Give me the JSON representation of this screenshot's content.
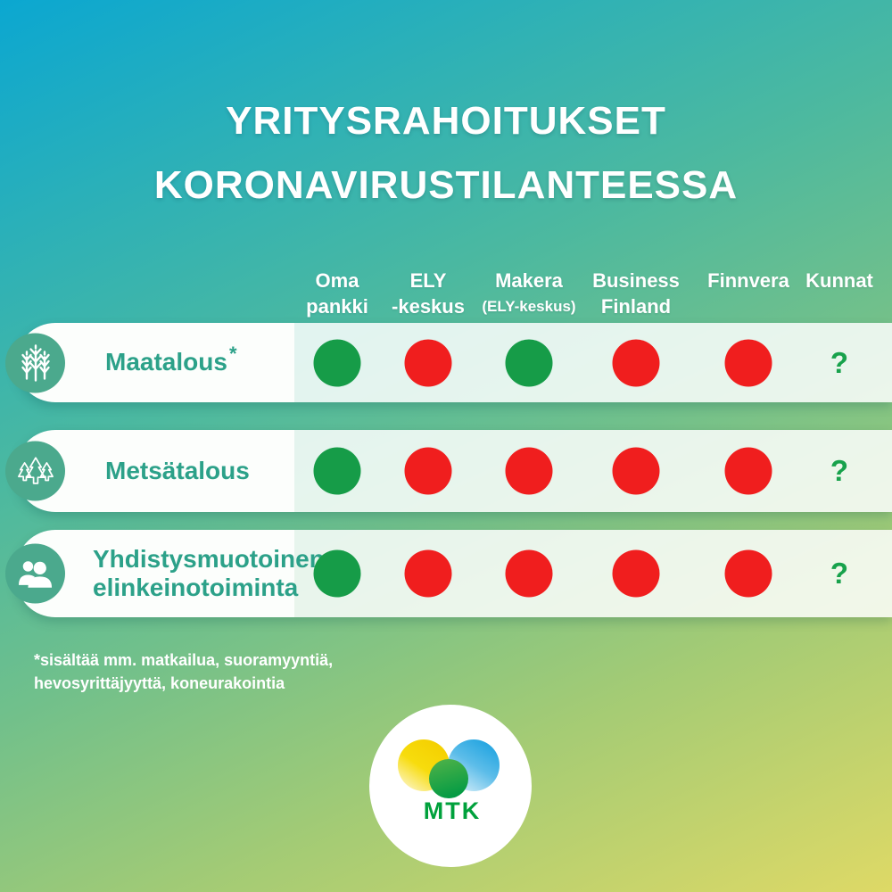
{
  "title": {
    "line1": "YRITYSRAHOITUKSET",
    "line2": "KORONAVIRUSTILANTEESSA"
  },
  "columns": [
    {
      "id": "oma-pankki",
      "line1": "Oma",
      "line2": "pankki"
    },
    {
      "id": "ely-keskus",
      "line1": "ELY",
      "line2": "-keskus"
    },
    {
      "id": "makera",
      "line1": "Makera",
      "line2": "(ELY-keskus)"
    },
    {
      "id": "business-finland",
      "line1": "Business",
      "line2": "Finland"
    },
    {
      "id": "finnvera",
      "line1": "Finnvera",
      "line2": ""
    },
    {
      "id": "kunnat",
      "line1": "Kunnat",
      "line2": ""
    }
  ],
  "rows": [
    {
      "id": "maatalous",
      "icon": "wheat-icon",
      "label": "Maatalous",
      "label_suffix": "*",
      "label2": "",
      "cells": [
        "green",
        "red",
        "green",
        "red",
        "red",
        "?"
      ]
    },
    {
      "id": "metsatalous",
      "icon": "trees-icon",
      "label": "Metsätalous",
      "label_suffix": "",
      "label2": "",
      "cells": [
        "green",
        "red",
        "red",
        "red",
        "red",
        "?"
      ]
    },
    {
      "id": "yhdistysmuotoinen-elinkeinotoiminta",
      "icon": "people-icon",
      "label": "Yhdistysmuotoinen",
      "label_suffix": "",
      "label2": "elinkeinotoiminta",
      "cells": [
        "green",
        "red",
        "red",
        "red",
        "red",
        "?"
      ]
    }
  ],
  "unknown_symbol": "?",
  "footnote": {
    "line1": "*sisältää mm. matkailua, suoramyyntiä,",
    "line2": "hevosyrittäjyyttä, koneurakointia"
  },
  "logo": {
    "text": "MTK"
  },
  "colors": {
    "green_dot": "#169c48",
    "red_dot": "#f01e1e",
    "unknown_text": "#18a24c",
    "row_label": "#2ca189",
    "icon_circle": "#4ba98d",
    "bg_top_left": "#0ba7d1",
    "bg_top_right": "#3db3b0",
    "bg_bottom_left": "#9fcb7d",
    "bg_bottom_right": "#dcd967",
    "logo_text_green": "#00a13c"
  },
  "chart_data": {
    "type": "table",
    "title": "YRITYSRAHOITUKSET KORONAVIRUSTILANTEESSA",
    "columns": [
      "Oma pankki",
      "ELY -keskus",
      "Makera (ELY-keskus)",
      "Business Finland",
      "Finnvera",
      "Kunnat"
    ],
    "rows": [
      "Maatalous*",
      "Metsätalous",
      "Yhdistysmuotoinen elinkeinotoiminta"
    ],
    "values": [
      [
        "green",
        "red",
        "green",
        "red",
        "red",
        "?"
      ],
      [
        "green",
        "red",
        "red",
        "red",
        "red",
        "?"
      ],
      [
        "green",
        "red",
        "red",
        "red",
        "red",
        "?"
      ]
    ],
    "footnote": "*sisältää mm. matkailua, suoramyyntiä, hevosyrittäjyyttä, koneurakointia",
    "legend_position": "none",
    "grid": false
  }
}
